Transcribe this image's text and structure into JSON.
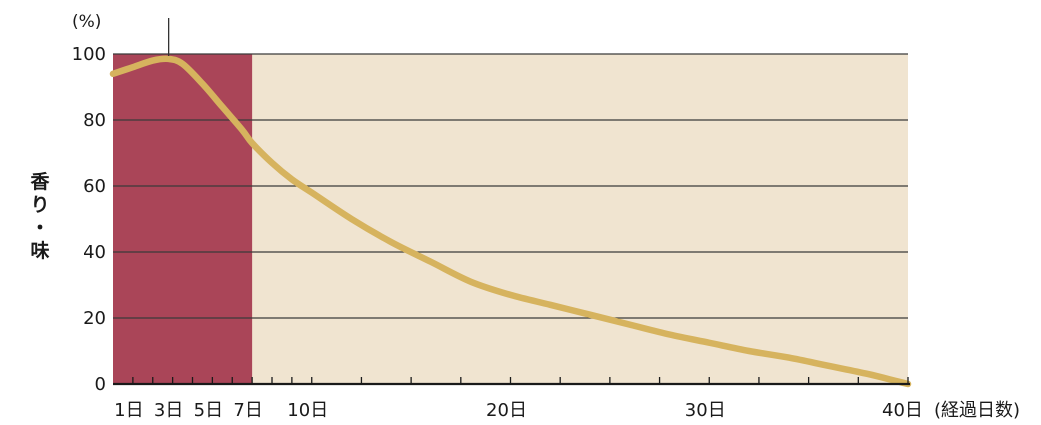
{
  "chart_data": {
    "type": "line",
    "title": "",
    "xlabel": "(経過日数)",
    "ylabel": "香り・味",
    "y_unit": "(%)",
    "ylim": [
      0,
      100
    ],
    "xlim": [
      0,
      40
    ],
    "grid": true,
    "y_ticks": [
      0,
      20,
      40,
      60,
      80,
      100
    ],
    "x_tick_labels": [
      {
        "day": 1,
        "label": "1日"
      },
      {
        "day": 3,
        "label": "3日"
      },
      {
        "day": 5,
        "label": "5日"
      },
      {
        "day": 7,
        "label": "7日"
      },
      {
        "day": 10,
        "label": "10日"
      },
      {
        "day": 20,
        "label": "20日"
      },
      {
        "day": 30,
        "label": "30日"
      },
      {
        "day": 40,
        "label": "40日"
      }
    ],
    "highlight_region": {
      "from_day": 0,
      "to_day": 7,
      "color": "#aa4558"
    },
    "background_color": "#f0e4d0",
    "line_color": "#d6b35e",
    "peak_marker_day": 2.8,
    "series": [
      {
        "name": "",
        "x": [
          0,
          1,
          2,
          2.8,
          3.5,
          4.5,
          5.5,
          6.5,
          7,
          8,
          9,
          10,
          12,
          14,
          16,
          18,
          20,
          22,
          24,
          26,
          28,
          30,
          32,
          34,
          36,
          38,
          40
        ],
        "y": [
          94,
          96,
          98,
          98.5,
          97,
          91,
          84,
          77,
          73,
          67,
          62,
          58,
          50,
          43,
          37,
          31,
          27,
          24,
          21,
          18,
          15,
          12.5,
          10,
          8,
          5.5,
          3,
          0
        ]
      }
    ]
  }
}
